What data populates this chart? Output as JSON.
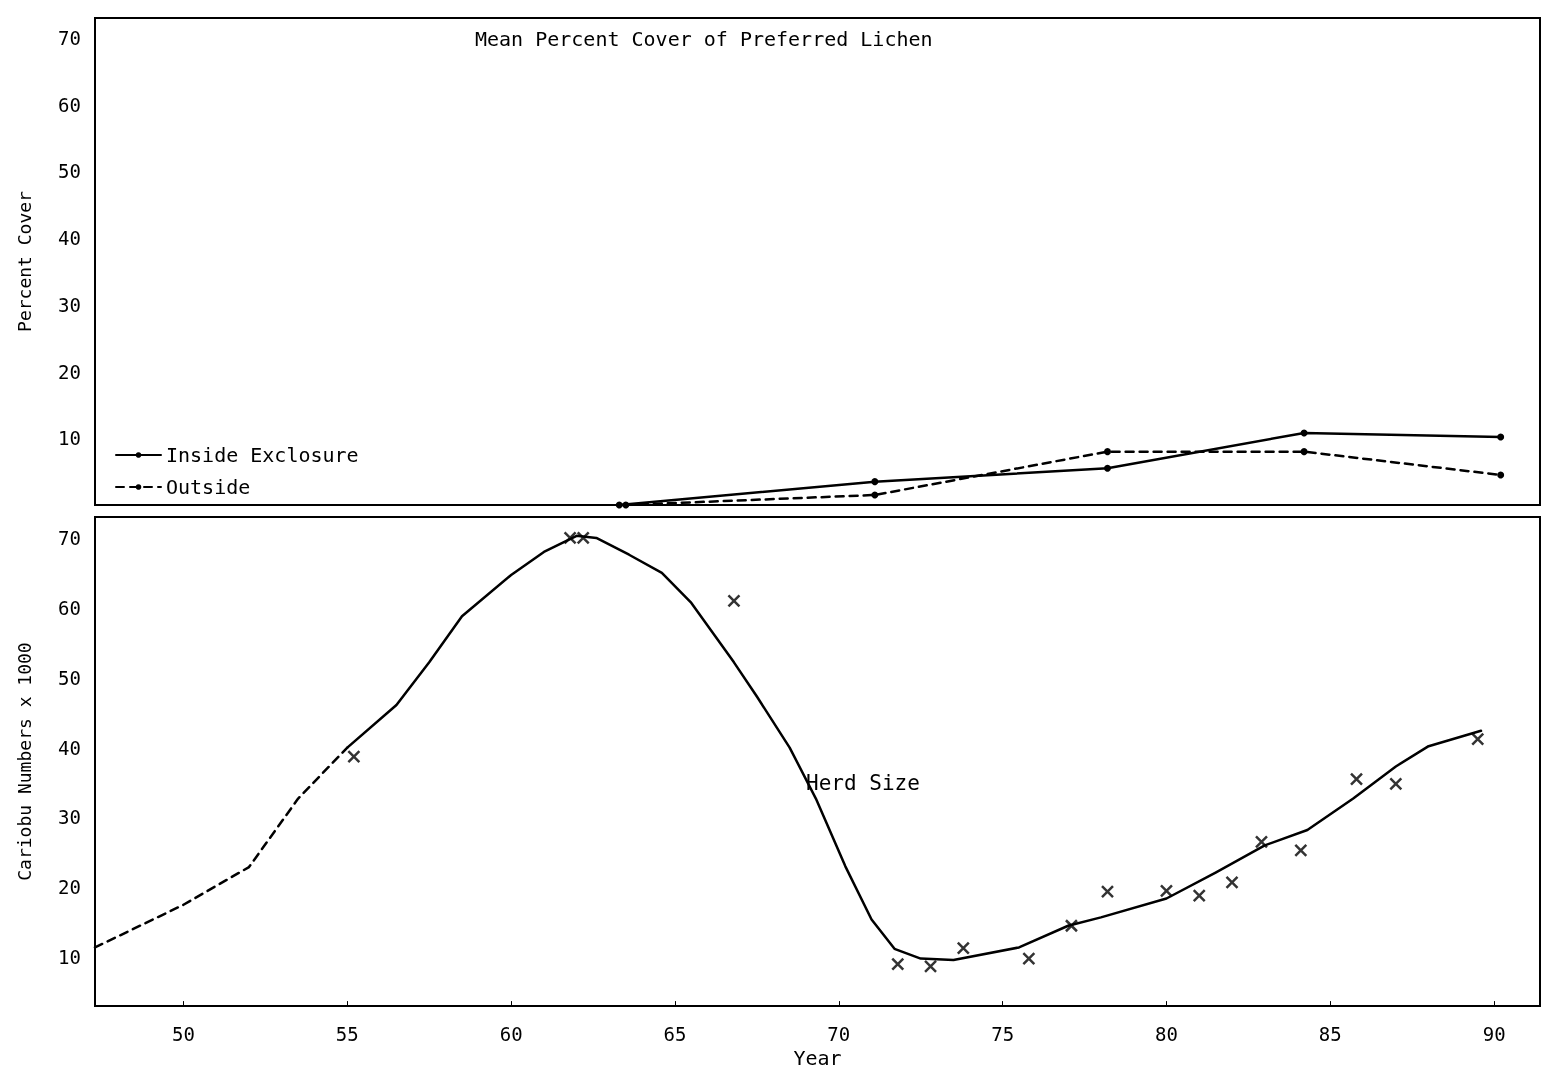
{
  "chart_data": [
    {
      "type": "line",
      "title": "Mean Percent Cover of Preferred Lichen",
      "ylabel": "Percent Cover",
      "xlim": [
        47.3,
        91.4
      ],
      "ylim": [
        0,
        73
      ],
      "yticks": [
        10,
        20,
        30,
        40,
        50,
        60,
        70
      ],
      "tick_labels": "y",
      "grid": false,
      "legend": "bottom left",
      "marker": "circle",
      "series": [
        {
          "name": "Inside Exclosure",
          "color": "#000000",
          "line_style": "solid",
          "x": [
            63.3,
            71.1,
            78.2,
            84.2,
            90.2
          ],
          "values": [
            0,
            3.5,
            5.5,
            10.8,
            10.2
          ]
        },
        {
          "name": "Outside",
          "color": "#000000",
          "line_style": "dashed",
          "x": [
            63.5,
            71.1,
            78.2,
            84.2,
            90.2
          ],
          "values": [
            0,
            1.5,
            8,
            8,
            4.5
          ]
        }
      ]
    },
    {
      "type": "line",
      "xlabel": "Year",
      "ylabel": "Cariobu Numbers x 1000",
      "xlim": [
        47.3,
        91.4
      ],
      "ylim": [
        3,
        73
      ],
      "xticks": [
        50,
        55,
        60,
        65,
        70,
        75,
        80,
        85,
        90
      ],
      "yticks": [
        10,
        20,
        30,
        40,
        50,
        60,
        70
      ],
      "grid": false,
      "legend": false,
      "marker": "none",
      "annotations": [
        {
          "text": "Herd Size",
          "x": 69,
          "y": 35
        }
      ],
      "series": [
        {
          "color": "#000000",
          "line_style": "dashed",
          "x": [
            47.3,
            50,
            52,
            53.5,
            55
          ],
          "values": [
            11.4,
            17.5,
            22.9,
            32.7,
            40
          ]
        },
        {
          "color": "#000000",
          "line_style": "solid",
          "x": [
            55,
            56.5,
            57.5,
            58.5,
            60,
            61,
            62,
            62.6,
            63.6,
            64.6,
            65.5,
            66.8,
            67.5,
            68.5,
            69.3,
            70.2,
            71,
            71.7,
            72.5,
            73.5,
            75.5,
            77,
            78,
            80,
            81.5,
            83,
            84.3,
            85.7,
            87,
            88,
            89.6
          ],
          "values": [
            40,
            46.1,
            52.2,
            58.8,
            64.7,
            68,
            70.3,
            70,
            67.6,
            65,
            60.7,
            52.2,
            47.3,
            40,
            32.7,
            23,
            15.4,
            11.2,
            9.8,
            9.6,
            11.4,
            14.5,
            15.7,
            18.4,
            22.1,
            26,
            28.2,
            32.7,
            37.3,
            40.2,
            42.4
          ]
        },
        {
          "type": "scatter",
          "color": "#000000",
          "marker": "cross",
          "x": [
            55.2,
            61.8,
            62.2,
            66.8,
            71.8,
            72.8,
            73.8,
            75.8,
            77.1,
            78.2,
            80,
            81,
            82,
            82.9,
            84.1,
            85.8,
            87,
            89.5
          ],
          "values": [
            38.7,
            70,
            70,
            61,
            9,
            8.7,
            11.3,
            9.8,
            14.5,
            19.4,
            19.5,
            18.8,
            20.7,
            26.5,
            25.3,
            35.5,
            34.8,
            41.2
          ]
        }
      ]
    }
  ]
}
